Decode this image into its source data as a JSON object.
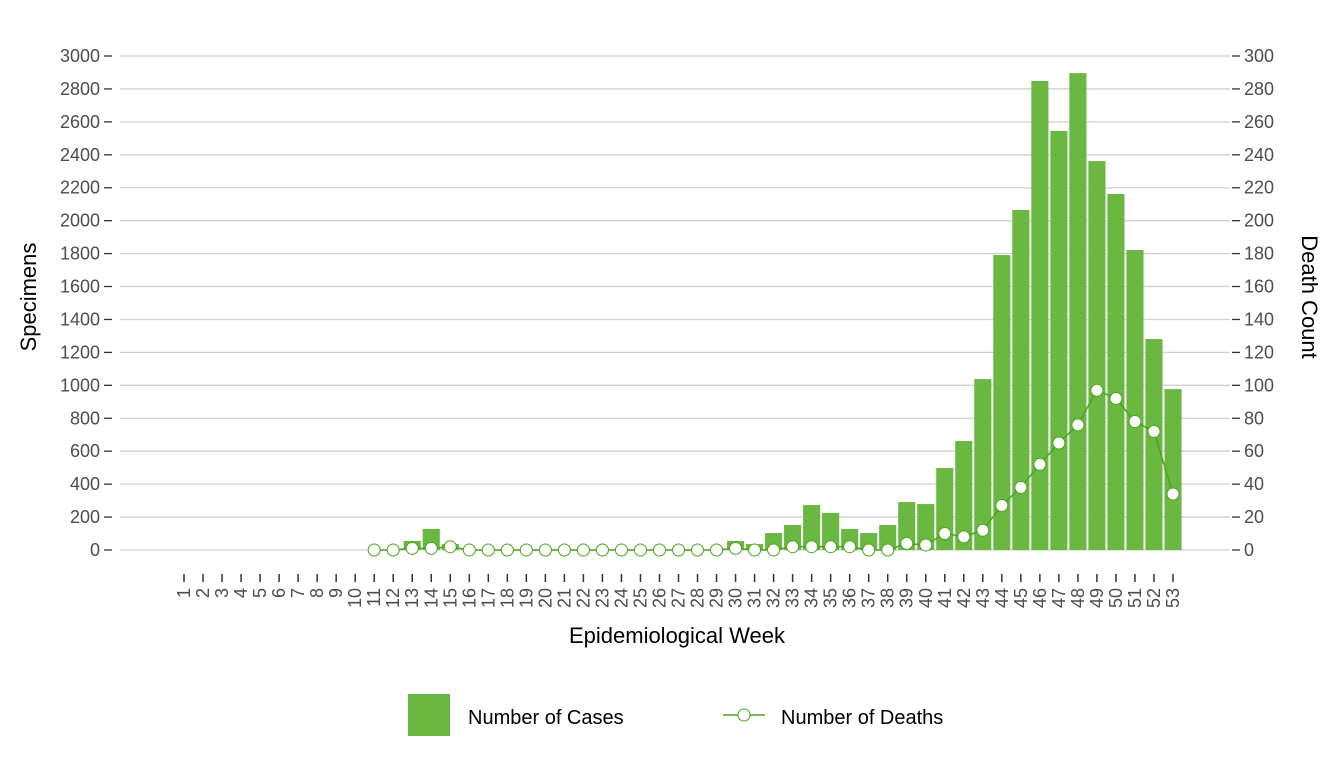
{
  "chart_data": {
    "type": "bar",
    "title": "",
    "xlabel": "Epidemiological Week",
    "ylabel": "Specimens",
    "y2label": "Death Count",
    "ylim": [
      0,
      3000
    ],
    "y2lim": [
      0,
      300
    ],
    "yticks": [
      0,
      200,
      400,
      600,
      800,
      1000,
      1200,
      1400,
      1600,
      1800,
      2000,
      2200,
      2400,
      2600,
      2800,
      3000
    ],
    "y2ticks": [
      0,
      20,
      40,
      60,
      80,
      100,
      120,
      140,
      160,
      180,
      200,
      220,
      240,
      260,
      280,
      300
    ],
    "grid": true,
    "legend_position": "bottom",
    "categories": [
      "1",
      "2",
      "3",
      "4",
      "5",
      "6",
      "7",
      "8",
      "9",
      "10",
      "11",
      "12",
      "13",
      "14",
      "15",
      "16",
      "17",
      "18",
      "19",
      "20",
      "21",
      "22",
      "23",
      "24",
      "25",
      "26",
      "27",
      "28",
      "29",
      "30",
      "31",
      "32",
      "33",
      "34",
      "35",
      "36",
      "37",
      "38",
      "39",
      "40",
      "41",
      "42",
      "43",
      "44",
      "45",
      "46",
      "47",
      "48",
      "49",
      "50",
      "51",
      "52",
      "53"
    ],
    "series": [
      {
        "name": "Number of Cases",
        "type": "bar",
        "axis": "left",
        "color": "#6ab842",
        "values": [
          null,
          null,
          null,
          null,
          null,
          null,
          null,
          null,
          null,
          null,
          0,
          0,
          55,
          128,
          36,
          0,
          0,
          0,
          0,
          0,
          0,
          0,
          0,
          0,
          0,
          0,
          0,
          0,
          0,
          55,
          36,
          103,
          152,
          273,
          225,
          128,
          103,
          152,
          291,
          279,
          498,
          662,
          1038,
          1791,
          2065,
          2848,
          2545,
          2896,
          2362,
          2162,
          1822,
          1281,
          977
        ]
      },
      {
        "name": "Number of Deaths",
        "type": "line",
        "axis": "right",
        "color": "#4aa51e",
        "values": [
          null,
          null,
          null,
          null,
          null,
          null,
          null,
          null,
          null,
          null,
          0,
          0,
          1,
          1,
          2,
          0,
          0,
          0,
          0,
          0,
          0,
          0,
          0,
          0,
          0,
          0,
          0,
          0,
          0,
          1,
          0,
          0,
          2,
          2,
          2,
          2,
          0,
          0,
          4,
          3,
          10,
          8,
          12,
          27,
          38,
          52,
          65,
          76,
          97,
          92,
          78,
          72,
          34
        ]
      }
    ]
  }
}
